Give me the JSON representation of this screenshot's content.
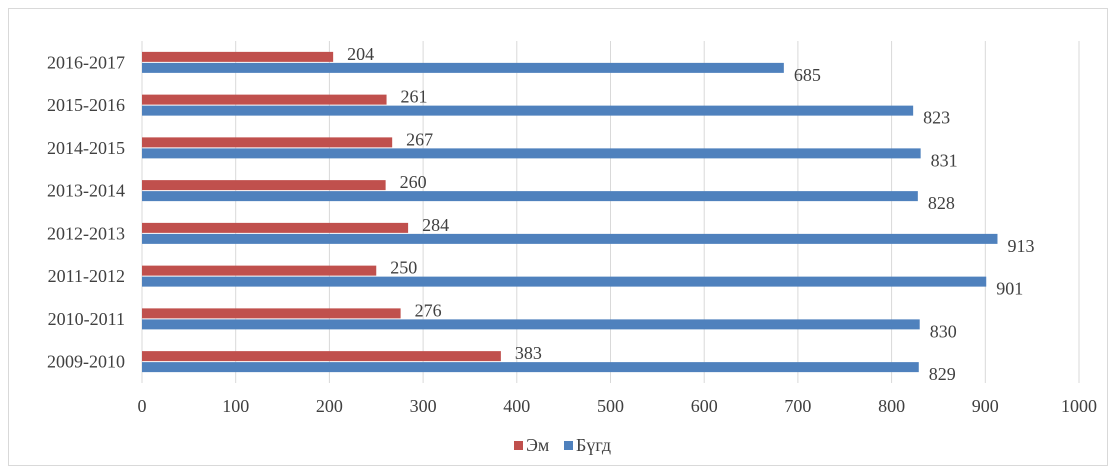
{
  "chart_data": {
    "type": "bar",
    "orientation": "horizontal",
    "title": "",
    "xlabel": "",
    "ylabel": "",
    "categories": [
      "2009-2010",
      "2010-2011",
      "2011-2012",
      "2012-2013",
      "2013-2014",
      "2014-2015",
      "2015-2016",
      "2016-2017"
    ],
    "series": [
      {
        "name": "Эм",
        "color": "#c0504d",
        "values": [
          383,
          276,
          250,
          284,
          260,
          267,
          261,
          204
        ]
      },
      {
        "name": "Бүгд",
        "color": "#4f81bd",
        "values": [
          829,
          830,
          901,
          913,
          828,
          831,
          823,
          685
        ]
      }
    ],
    "xlim": [
      0,
      1000
    ],
    "xticks": [
      0,
      100,
      200,
      300,
      400,
      500,
      600,
      700,
      800,
      900,
      1000
    ],
    "grid": true,
    "legend_position": "bottom"
  }
}
